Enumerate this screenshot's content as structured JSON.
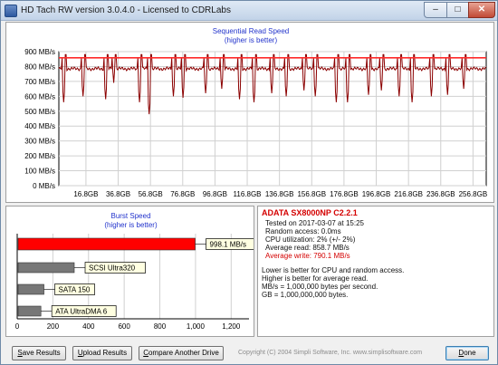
{
  "window": {
    "title": "HD Tach RW version 3.0.4.0 - Licensed to CDRLabs",
    "min_glyph": "–",
    "max_glyph": "□",
    "close_glyph": "✕"
  },
  "colors": {
    "read_line": "#8b0000",
    "average_line": "#ff2a2a",
    "burst_bar_main": "#ff0000",
    "burst_bar_ref": "#777777",
    "title_blue": "#2233cc",
    "info_red": "#d40000"
  },
  "sequential_chart": {
    "title": "Sequential Read Speed",
    "subtitle": "(higher is better)"
  },
  "burst_chart": {
    "title": "Burst Speed",
    "subtitle": "(higher is better)"
  },
  "chart_data": [
    {
      "type": "line",
      "title": "Sequential Read Speed",
      "subtitle": "(higher is better)",
      "y_unit": "MB/s",
      "ylim": [
        0,
        900
      ],
      "y_ticks": [
        "0 MB/s",
        "100 MB/s",
        "200 MB/s",
        "300 MB/s",
        "400 MB/s",
        "500 MB/s",
        "600 MB/s",
        "700 MB/s",
        "800 MB/s",
        "900 MB/s"
      ],
      "xlim_gb": [
        0,
        265.0
      ],
      "x_ticks": [
        "16.8GB",
        "36.8GB",
        "56.8GB",
        "76.8GB",
        "96.8GB",
        "116.8GB",
        "136.8GB",
        "156.8GB",
        "176.8GB",
        "196.8GB",
        "216.8GB",
        "236.8GB",
        "256.8GB"
      ],
      "x_tick_values_gb": [
        16.8,
        36.8,
        56.8,
        76.8,
        96.8,
        116.8,
        136.8,
        156.8,
        176.8,
        196.8,
        216.8,
        236.8,
        256.8
      ],
      "grid": true,
      "series": [
        {
          "name": "Read",
          "color": "#8b0000",
          "baseline": 785,
          "dips_gb": [
            3,
            15,
            29,
            34,
            50,
            56,
            71,
            77,
            91,
            101,
            112,
            121,
            132,
            141,
            152,
            159,
            172,
            179,
            192,
            200,
            211,
            219,
            231,
            241,
            251
          ],
          "dip_lows": [
            560,
            600,
            580,
            690,
            560,
            480,
            600,
            590,
            620,
            650,
            580,
            560,
            620,
            600,
            640,
            600,
            560,
            560,
            610,
            640,
            600,
            560,
            600,
            610,
            650
          ]
        },
        {
          "name": "Average",
          "color": "#ff2a2a",
          "values_x": [
            0,
            265
          ],
          "values_y": [
            858.7,
            858.7
          ]
        }
      ]
    },
    {
      "type": "bar",
      "title": "Burst Speed",
      "subtitle": "(higher is better)",
      "orientation": "horizontal",
      "categories": [
        "ADATA SX8000NP",
        "SCSI Ultra320",
        "SATA 150",
        "ATA UltraDMA 6"
      ],
      "values": [
        998.1,
        320,
        150,
        133
      ],
      "labels": [
        "998.1 MB/s",
        "SCSI Ultra320",
        "SATA 150",
        "ATA UltraDMA 6"
      ],
      "xlim": [
        0,
        1300
      ],
      "x_ticks": [
        "0",
        "200",
        "400",
        "600",
        "800",
        "1,000",
        "1,200"
      ],
      "x_tick_values": [
        0,
        200,
        400,
        600,
        800,
        1000,
        1200
      ],
      "colors": [
        "#ff0000",
        "#777777",
        "#777777",
        "#777777"
      ]
    }
  ],
  "info": {
    "drive": "ADATA SX8000NP C2.2.1",
    "tested_on": "Tested on 2017-03-07 at 15:25",
    "random_access": "Random access: 0.0ms",
    "cpu": "CPU utilization: 2% (+/- 2%)",
    "avg_read": "Average read: 858.7 MB/s",
    "avg_write": "Average write: 790.1 MB/s",
    "notes": [
      "Lower is better for CPU and random access.",
      "Higher is better for average read.",
      "MB/s = 1,000,000 bytes per second.",
      "GB = 1,000,000,000 bytes."
    ]
  },
  "buttons": {
    "save_results": "ave Results",
    "save_results_key": "S",
    "upload_results": "pload Results",
    "upload_results_key": "U",
    "compare": "ompare Another Drive",
    "compare_key": "C",
    "done": "one",
    "done_key": "D"
  },
  "footer": {
    "copyright": "Copyright (C) 2004 Simpli Software, Inc. www.simplisoftware.com"
  }
}
